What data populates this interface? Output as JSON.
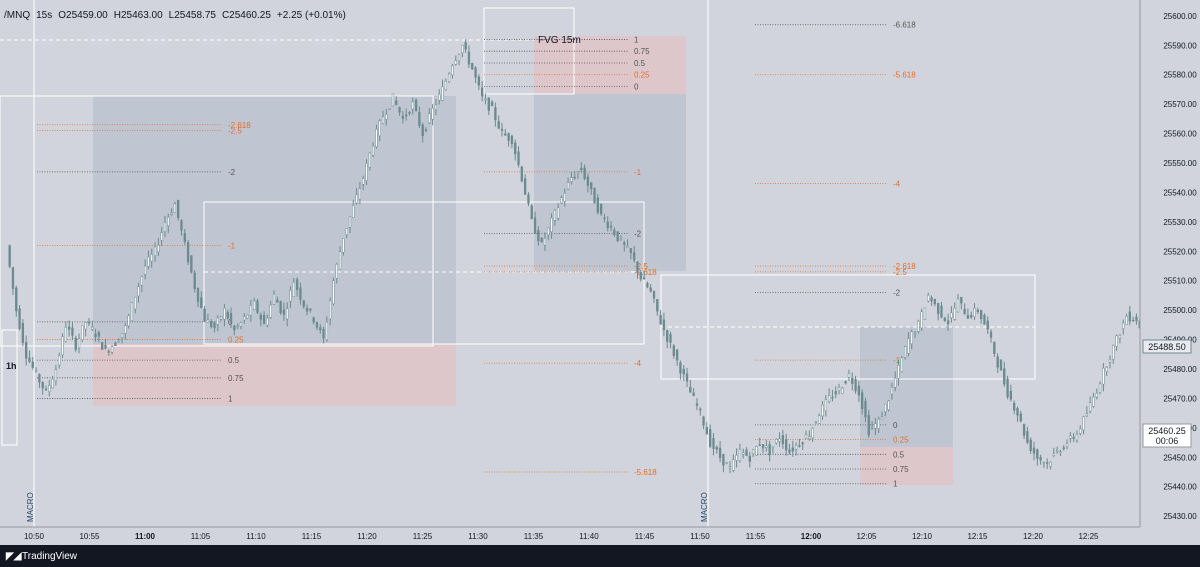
{
  "header": {
    "symbol": "/MNQ",
    "interval": "15s",
    "open": "O25459.00",
    "high": "H25463.00",
    "low": "L25458.75",
    "close": "C25460.25",
    "change": "+2.25 (+0.01%)"
  },
  "watermark": "TradingView",
  "colors": {
    "background": "#d1d4dc",
    "candle": "#6b8a90",
    "fib_dark": "#555555",
    "fib_orange": "#e0702c",
    "box_blue": "#b8c2ce",
    "box_red": "#e0c3c7"
  },
  "annotations": {
    "fvg_label": "FVG 15m",
    "macro_label": "MACRO",
    "timeframe_label": "1h"
  },
  "price_tags": {
    "last_price": "25488.50",
    "cursor_price": "25460.25",
    "countdown": "00:06"
  },
  "chart_data": {
    "type": "candlestick",
    "x_axis": {
      "ticks": [
        "10:50",
        "10:55",
        "11:00",
        "11:05",
        "11:10",
        "11:15",
        "11:20",
        "11:25",
        "11:30",
        "11:35",
        "11:40",
        "11:45",
        "11:50",
        "11:55",
        "12:00",
        "12:05",
        "12:10",
        "12:15",
        "12:20",
        "12:25"
      ],
      "bold_ticks": [
        "11:00",
        "12:00"
      ]
    },
    "y_axis": {
      "ticks": [
        "25600.00",
        "25590.00",
        "25580.00",
        "25570.00",
        "25560.00",
        "25550.00",
        "25540.00",
        "25530.00",
        "25520.00",
        "25510.00",
        "25500.00",
        "25490.00",
        "25480.00",
        "25470.00",
        "25460.00",
        "25450.00",
        "25440.00",
        "25430.00"
      ],
      "ylim": [
        25428,
        25602
      ]
    },
    "series": [
      {
        "values": [
          25522,
          25500,
          25485,
          25478,
          25472,
          25480,
          25495,
          25488,
          25496,
          25492,
          25486,
          25489,
          25494,
          25505,
          25515,
          25520,
          25530,
          25536,
          25522,
          25508,
          25497,
          25494,
          25500,
          25493,
          25497,
          25502,
          25495,
          25505,
          25498,
          25510,
          25502,
          25497,
          25490,
          25510,
          25525,
          25535,
          25545,
          25557,
          25566,
          25572,
          25565,
          25570,
          25560,
          25568,
          25575,
          25584,
          25590,
          25582,
          25572,
          25568,
          25560,
          25558,
          25545,
          25530,
          25522,
          25530,
          25538,
          25545,
          25548,
          25540,
          25532,
          25528,
          25523,
          25519,
          25511,
          25506,
          25496,
          25488,
          25480,
          25472,
          25465,
          25455,
          25450,
          25446,
          25452,
          25450,
          25455,
          25452,
          25457,
          25452,
          25455,
          25458,
          25465,
          25470,
          25473,
          25478,
          25472,
          25459,
          25462,
          25470,
          25480,
          25490,
          25495,
          25505,
          25500,
          25496,
          25503,
          25498,
          25500,
          25493,
          25482,
          25472,
          25465,
          25455,
          25450,
          25448,
          25452,
          25455,
          25458,
          25465,
          25473,
          25482,
          25490,
          25498,
          25497,
          25488
        ]
      }
    ],
    "fib_sets": [
      {
        "levels": [
          {
            "label": "-2.618",
            "price": 25563,
            "orange": true
          },
          {
            "label": "-2.5",
            "price": 25561,
            "orange": true
          },
          {
            "label": "-2",
            "price": 25547,
            "orange": false
          },
          {
            "label": "-1",
            "price": 25522,
            "orange": true
          },
          {
            "label": "0",
            "price": 25496,
            "orange": false
          },
          {
            "label": "0.25",
            "price": 25490,
            "orange": true
          },
          {
            "label": "0.5",
            "price": 25483,
            "orange": false
          },
          {
            "label": "0.75",
            "price": 25477,
            "orange": false
          },
          {
            "label": "1",
            "price": 25470,
            "orange": false
          }
        ]
      },
      {
        "levels": [
          {
            "label": "1",
            "price": 25592,
            "orange": false
          },
          {
            "label": "0.75",
            "price": 25588,
            "orange": false
          },
          {
            "label": "0.5",
            "price": 25584,
            "orange": false
          },
          {
            "label": "0.25",
            "price": 25580,
            "orange": true
          },
          {
            "label": "0",
            "price": 25576,
            "orange": false
          },
          {
            "label": "-1",
            "price": 25547,
            "orange": true
          },
          {
            "label": "-2",
            "price": 25526,
            "orange": false
          },
          {
            "label": "-2.5",
            "price": 25515,
            "orange": true
          },
          {
            "label": "-2.618",
            "price": 25513,
            "orange": true
          },
          {
            "label": "-4",
            "price": 25482,
            "orange": true
          },
          {
            "label": "-5.618",
            "price": 25445,
            "orange": true
          }
        ]
      },
      {
        "levels": [
          {
            "label": "-6.618",
            "price": 25597,
            "orange": false
          },
          {
            "label": "-5.618",
            "price": 25580,
            "orange": true
          },
          {
            "label": "-4",
            "price": 25543,
            "orange": true
          },
          {
            "label": "-2.618",
            "price": 25515,
            "orange": true
          },
          {
            "label": "-2.5",
            "price": 25513,
            "orange": true
          },
          {
            "label": "-2",
            "price": 25506,
            "orange": false
          },
          {
            "label": "-1",
            "price": 25483,
            "orange": true
          },
          {
            "label": "0",
            "price": 25461,
            "orange": false
          },
          {
            "label": "0.25",
            "price": 25456,
            "orange": true
          },
          {
            "label": "0.5",
            "price": 25451,
            "orange": false
          },
          {
            "label": "0.75",
            "price": 25446,
            "orange": false
          },
          {
            "label": "1",
            "price": 25441,
            "orange": false
          }
        ]
      }
    ]
  }
}
